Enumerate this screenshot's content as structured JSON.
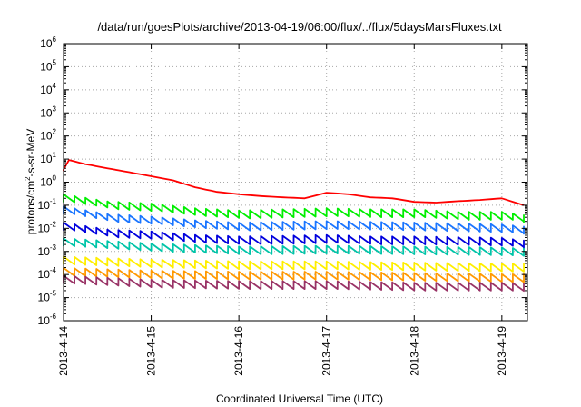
{
  "chart_data": {
    "type": "line",
    "title": "/data/run/goesPlots/archive/2013-04-19/06:00/flux/../flux/5daysMarsFluxes.txt",
    "xlabel": "Coordinated Universal Time (UTC)",
    "ylabel": {
      "text": "protons/cm2-s-sr-MeV",
      "parts": [
        "protons/cm",
        "2",
        "-s-sr-MeV"
      ]
    },
    "x_scale": "time",
    "xlim": [
      "2013-04-14T00:00",
      "2013-04-19T07:00"
    ],
    "x_ticks": [
      "2013-4-14",
      "2013-4-15",
      "2013-4-16",
      "2013-4-17",
      "2013-4-18",
      "2013-4-19"
    ],
    "y_scale": "log",
    "ylim": [
      1e-06,
      1000000.0
    ],
    "y_ticks": [
      {
        "base": "10",
        "exp": "-6"
      },
      {
        "base": "10",
        "exp": "-5"
      },
      {
        "base": "10",
        "exp": "-4"
      },
      {
        "base": "10",
        "exp": "-3"
      },
      {
        "base": "10",
        "exp": "-2"
      },
      {
        "base": "10",
        "exp": "-1"
      },
      {
        "base": "10",
        "exp": "0"
      },
      {
        "base": "10",
        "exp": "1"
      },
      {
        "base": "10",
        "exp": "2"
      },
      {
        "base": "10",
        "exp": "3"
      },
      {
        "base": "10",
        "exp": "4"
      },
      {
        "base": "10",
        "exp": "5"
      },
      {
        "base": "10",
        "exp": "6"
      }
    ],
    "grid": true,
    "legend": "none",
    "series": [
      {
        "color": "#ff0000",
        "points": [
          [
            "2013-04-14T00:00",
            3.5
          ],
          [
            "2013-04-14T00:30",
            10
          ],
          [
            "2013-04-14T06:00",
            6
          ],
          [
            "2013-04-14T12:00",
            4
          ],
          [
            "2013-04-14T18:00",
            2.7
          ],
          [
            "2013-04-15T00:00",
            1.8
          ],
          [
            "2013-04-15T06:00",
            1.2
          ],
          [
            "2013-04-15T12:00",
            0.6
          ],
          [
            "2013-04-15T18:00",
            0.38
          ],
          [
            "2013-04-16T00:00",
            0.3
          ],
          [
            "2013-04-16T06:00",
            0.25
          ],
          [
            "2013-04-16T12:00",
            0.22
          ],
          [
            "2013-04-16T18:00",
            0.2
          ],
          [
            "2013-04-17T00:00",
            0.35
          ],
          [
            "2013-04-17T06:00",
            0.3
          ],
          [
            "2013-04-17T12:00",
            0.22
          ],
          [
            "2013-04-17T18:00",
            0.2
          ],
          [
            "2013-04-18T00:00",
            0.14
          ],
          [
            "2013-04-18T06:00",
            0.13
          ],
          [
            "2013-04-18T12:00",
            0.15
          ],
          [
            "2013-04-18T18:00",
            0.17
          ],
          [
            "2013-04-19T00:00",
            0.2
          ],
          [
            "2013-04-19T06:00",
            0.1
          ]
        ]
      },
      {
        "color": "#00ee00",
        "points": [
          [
            "2013-04-14T00:00",
            0.2
          ],
          [
            "2013-04-14T12:00",
            0.1
          ],
          [
            "2013-04-15T00:00",
            0.08
          ],
          [
            "2013-04-15T12:00",
            0.05
          ],
          [
            "2013-04-16T00:00",
            0.04
          ],
          [
            "2013-04-16T12:00",
            0.045
          ],
          [
            "2013-04-17T00:00",
            0.05
          ],
          [
            "2013-04-17T12:00",
            0.045
          ],
          [
            "2013-04-18T00:00",
            0.045
          ],
          [
            "2013-04-18T12:00",
            0.035
          ],
          [
            "2013-04-19T00:00",
            0.035
          ],
          [
            "2013-04-19T06:00",
            0.025
          ]
        ]
      },
      {
        "color": "#1a75ff",
        "points": [
          [
            "2013-04-14T00:00",
            0.06
          ],
          [
            "2013-04-14T12:00",
            0.028
          ],
          [
            "2013-04-15T00:00",
            0.022
          ],
          [
            "2013-04-15T12:00",
            0.015
          ],
          [
            "2013-04-16T00:00",
            0.012
          ],
          [
            "2013-04-16T12:00",
            0.013
          ],
          [
            "2013-04-17T00:00",
            0.014
          ],
          [
            "2013-04-17T12:00",
            0.013
          ],
          [
            "2013-04-18T00:00",
            0.012
          ],
          [
            "2013-04-18T12:00",
            0.011
          ],
          [
            "2013-04-19T00:00",
            0.01
          ],
          [
            "2013-04-19T06:00",
            0.008
          ]
        ]
      },
      {
        "color": "#0000dd",
        "points": [
          [
            "2013-04-14T00:00",
            0.012
          ],
          [
            "2013-04-14T12:00",
            0.006
          ],
          [
            "2013-04-15T00:00",
            0.005
          ],
          [
            "2013-04-15T12:00",
            0.0035
          ],
          [
            "2013-04-16T00:00",
            0.003
          ],
          [
            "2013-04-16T12:00",
            0.0032
          ],
          [
            "2013-04-17T00:00",
            0.0035
          ],
          [
            "2013-04-17T12:00",
            0.003
          ],
          [
            "2013-04-18T00:00",
            0.003
          ],
          [
            "2013-04-18T12:00",
            0.0028
          ],
          [
            "2013-04-19T00:00",
            0.0026
          ],
          [
            "2013-04-19T06:00",
            0.002
          ]
        ]
      },
      {
        "color": "#00c4a8",
        "points": [
          [
            "2013-04-14T00:00",
            0.0025
          ],
          [
            "2013-04-15T00:00",
            0.0015
          ],
          [
            "2013-04-16T00:00",
            0.0011
          ],
          [
            "2013-04-17T00:00",
            0.0012
          ],
          [
            "2013-04-18T00:00",
            0.0011
          ],
          [
            "2013-04-19T00:00",
            0.001
          ],
          [
            "2013-04-19T06:00",
            0.0009
          ]
        ]
      },
      {
        "color": "#ffee00",
        "points": [
          [
            "2013-04-14T00:00",
            0.0004
          ],
          [
            "2013-04-15T00:00",
            0.0003
          ],
          [
            "2013-04-16T00:00",
            0.00025
          ],
          [
            "2013-04-17T00:00",
            0.00025
          ],
          [
            "2013-04-18T00:00",
            0.00022
          ],
          [
            "2013-04-19T00:00",
            0.0002
          ],
          [
            "2013-04-19T06:00",
            0.0002
          ]
        ]
      },
      {
        "color": "#ff9900",
        "points": [
          [
            "2013-04-14T00:00",
            0.00013
          ],
          [
            "2013-04-15T00:00",
            0.0001
          ],
          [
            "2013-04-16T00:00",
            9e-05
          ],
          [
            "2013-04-17T00:00",
            9e-05
          ],
          [
            "2013-04-18T00:00",
            8e-05
          ],
          [
            "2013-04-19T00:00",
            7e-05
          ],
          [
            "2013-04-19T06:00",
            7e-05
          ]
        ]
      },
      {
        "color": "#993366",
        "points": [
          [
            "2013-04-14T00:00",
            6e-05
          ],
          [
            "2013-04-15T00:00",
            4e-05
          ],
          [
            "2013-04-16T00:00",
            3.5e-05
          ],
          [
            "2013-04-17T00:00",
            3.5e-05
          ],
          [
            "2013-04-18T00:00",
            3e-05
          ],
          [
            "2013-04-19T00:00",
            3e-05
          ],
          [
            "2013-04-19T06:00",
            2.8e-05
          ]
        ]
      }
    ]
  }
}
